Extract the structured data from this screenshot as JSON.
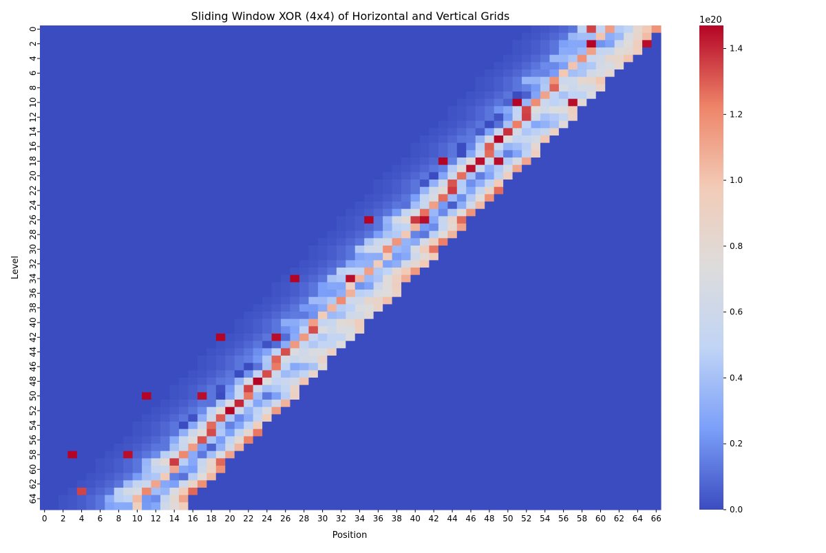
{
  "chart_data": {
    "type": "heatmap",
    "title": "Sliding Window XOR (4x4) of Horizontal and Vertical Grids",
    "xlabel": "Position",
    "ylabel": "Level",
    "n_cols": 67,
    "n_rows": 66,
    "x_tick_labels": [
      "0",
      "2",
      "4",
      "6",
      "8",
      "10",
      "12",
      "14",
      "16",
      "18",
      "20",
      "22",
      "24",
      "26",
      "28",
      "30",
      "32",
      "34",
      "36",
      "38",
      "40",
      "42",
      "44",
      "46",
      "48",
      "50",
      "52",
      "54",
      "56",
      "58",
      "60",
      "62",
      "64",
      "66"
    ],
    "y_tick_labels": [
      "0",
      "2",
      "4",
      "6",
      "8",
      "10",
      "12",
      "14",
      "16",
      "18",
      "20",
      "22",
      "24",
      "26",
      "28",
      "30",
      "32",
      "34",
      "36",
      "38",
      "40",
      "42",
      "44",
      "46",
      "48",
      "50",
      "52",
      "54",
      "56",
      "58",
      "60",
      "62",
      "64"
    ],
    "colormap": "coolwarm",
    "colormap_stops": [
      "#3b4cc0",
      "#7b9ff9",
      "#c0d4f5",
      "#dddcdc",
      "#f2cbb7",
      "#ee8468",
      "#b40426"
    ],
    "vmin": 0.0,
    "vmax": 1.47,
    "colorbar": {
      "scale_label": "1e20",
      "tick_labels": [
        "0.0",
        "0.2",
        "0.4",
        "0.6",
        "0.8",
        "1.0",
        "1.2",
        "1.4"
      ],
      "tick_values": [
        0.0,
        0.2,
        0.4,
        0.6,
        0.8,
        1.0,
        1.2,
        1.4
      ]
    },
    "band": {
      "description": "Values are ~0 everywhere except a diagonal band running from bottom-left to top-right",
      "start_col_at_top": 53,
      "slope_cols_per_row": -0.79,
      "width_cols": 14,
      "zero_value": 0.0
    },
    "band_profile": [
      0.02,
      0.03,
      0.05,
      0.08,
      0.12,
      0.2,
      0.35,
      0.5,
      1.2,
      0.45,
      0.35,
      0.55,
      0.7,
      1.0,
      0.95,
      0.3,
      0.45,
      0.55,
      0.25,
      0.2
    ],
    "hotspots": [
      {
        "row": 0,
        "col": 59,
        "value": 1.35
      },
      {
        "row": 2,
        "col": 59,
        "value": 1.47
      },
      {
        "row": 2,
        "col": 65,
        "value": 1.45
      },
      {
        "row": 10,
        "col": 51,
        "value": 1.47
      },
      {
        "row": 10,
        "col": 57,
        "value": 1.45
      },
      {
        "row": 18,
        "col": 43,
        "value": 1.47
      },
      {
        "row": 18,
        "col": 49,
        "value": 1.45
      },
      {
        "row": 26,
        "col": 35,
        "value": 1.47
      },
      {
        "row": 26,
        "col": 41,
        "value": 1.45
      },
      {
        "row": 34,
        "col": 27,
        "value": 1.47
      },
      {
        "row": 34,
        "col": 33,
        "value": 1.45
      },
      {
        "row": 42,
        "col": 19,
        "value": 1.47
      },
      {
        "row": 42,
        "col": 25,
        "value": 1.45
      },
      {
        "row": 50,
        "col": 11,
        "value": 1.47
      },
      {
        "row": 50,
        "col": 17,
        "value": 1.45
      },
      {
        "row": 58,
        "col": 3,
        "value": 1.47
      },
      {
        "row": 58,
        "col": 9,
        "value": 1.45
      },
      {
        "row": 63,
        "col": 4,
        "value": 1.35
      }
    ]
  }
}
